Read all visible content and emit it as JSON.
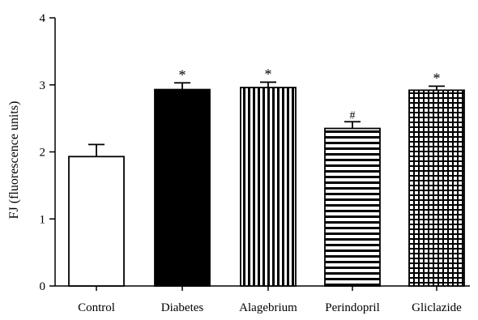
{
  "chart_data": {
    "type": "bar",
    "title": "",
    "xlabel": "",
    "ylabel": "FJ (fluorescence units)",
    "ylim": [
      0,
      4
    ],
    "yticks": [
      0,
      1,
      2,
      3,
      4
    ],
    "grid": false,
    "legend": "none",
    "categories": [
      "Control",
      "Diabetes",
      "Alagebrium",
      "Perindopril",
      "Gliclazide"
    ],
    "values": [
      1.93,
      2.93,
      2.96,
      2.35,
      2.92
    ],
    "error": [
      0.18,
      0.1,
      0.08,
      0.1,
      0.06
    ],
    "markers": [
      "",
      "*",
      "*",
      "#",
      "*"
    ],
    "patterns": [
      "none",
      "solid",
      "vertical-stripes",
      "horizontal-stripes",
      "grid"
    ],
    "colors": {
      "bar_outline": "#000000",
      "bar_fill_solid": "#000000",
      "bar_fill_empty": "#ffffff",
      "axis": "#000000"
    }
  }
}
